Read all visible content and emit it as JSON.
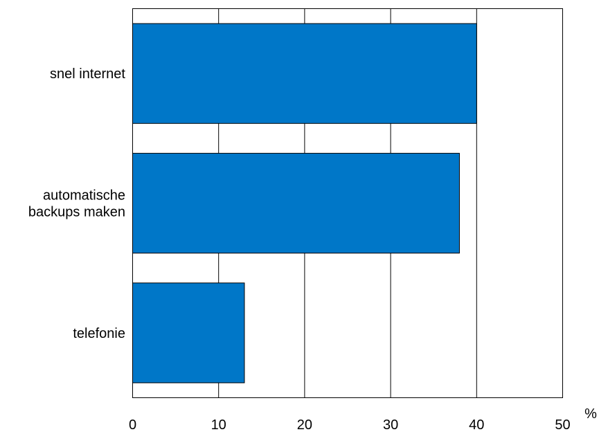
{
  "chart_data": {
    "type": "bar",
    "orientation": "horizontal",
    "categories": [
      "snel internet",
      "automatische backups maken",
      "telefonie"
    ],
    "category_lines": [
      [
        "snel internet"
      ],
      [
        "automatische",
        "backups maken"
      ],
      [
        "telefonie"
      ]
    ],
    "values": [
      40,
      38,
      13
    ],
    "xlim": [
      0,
      50
    ],
    "xticks": [
      0,
      10,
      20,
      30,
      40,
      50
    ],
    "xunit": "%",
    "grid": "vertical",
    "bar_color": "#0077c8"
  }
}
